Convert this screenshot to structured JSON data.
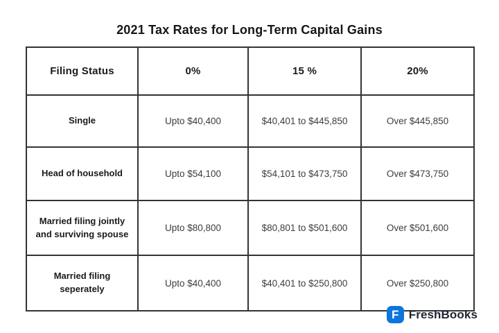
{
  "page": {
    "title": "2021 Tax Rates for Long-Term Capital Gains"
  },
  "table": {
    "headers": [
      "Filing Status",
      "0%",
      "15 %",
      "20%"
    ],
    "rows": [
      {
        "label": "Single",
        "cells": [
          "Upto $40,400",
          "$40,401 to $445,850",
          "Over $445,850"
        ]
      },
      {
        "label": "Head of household",
        "cells": [
          "Upto $54,100",
          "$54,101 to $473,750",
          "Over $473,750"
        ]
      },
      {
        "label": "Married filing jointly and surviving spouse",
        "cells": [
          "Upto $80,800",
          "$80,801 to $501,600",
          "Over $501,600"
        ]
      },
      {
        "label": "Married filing seperately",
        "cells": [
          "Upto $40,400",
          "$40,401 to $250,800",
          "Over $250,800"
        ]
      }
    ]
  },
  "branding": {
    "logo_letter": "F",
    "name": "FreshBooks",
    "logo_color": "#0d76dd",
    "text_color": "#1f2430"
  },
  "colors": {
    "background": "#ffffff",
    "table_border": "#333333",
    "title_text": "#161616",
    "cell_text": "#3d3d3d"
  },
  "chart_data": {
    "type": "table",
    "title": "2021 Tax Rates for Long-Term Capital Gains",
    "columns": [
      "Filing Status",
      "0%",
      "15 %",
      "20%"
    ],
    "rows": [
      [
        "Single",
        "Upto $40,400",
        "$40,401 to $445,850",
        "Over $445,850"
      ],
      [
        "Head of household",
        "Upto $54,100",
        "$54,101 to $473,750",
        "Over $473,750"
      ],
      [
        "Married filing jointly and surviving spouse",
        "Upto $80,800",
        "$80,801 to $501,600",
        "Over $501,600"
      ],
      [
        "Married filing seperately",
        "Upto $40,400",
        "$40,401 to $250,800",
        "Over $250,800"
      ]
    ]
  }
}
